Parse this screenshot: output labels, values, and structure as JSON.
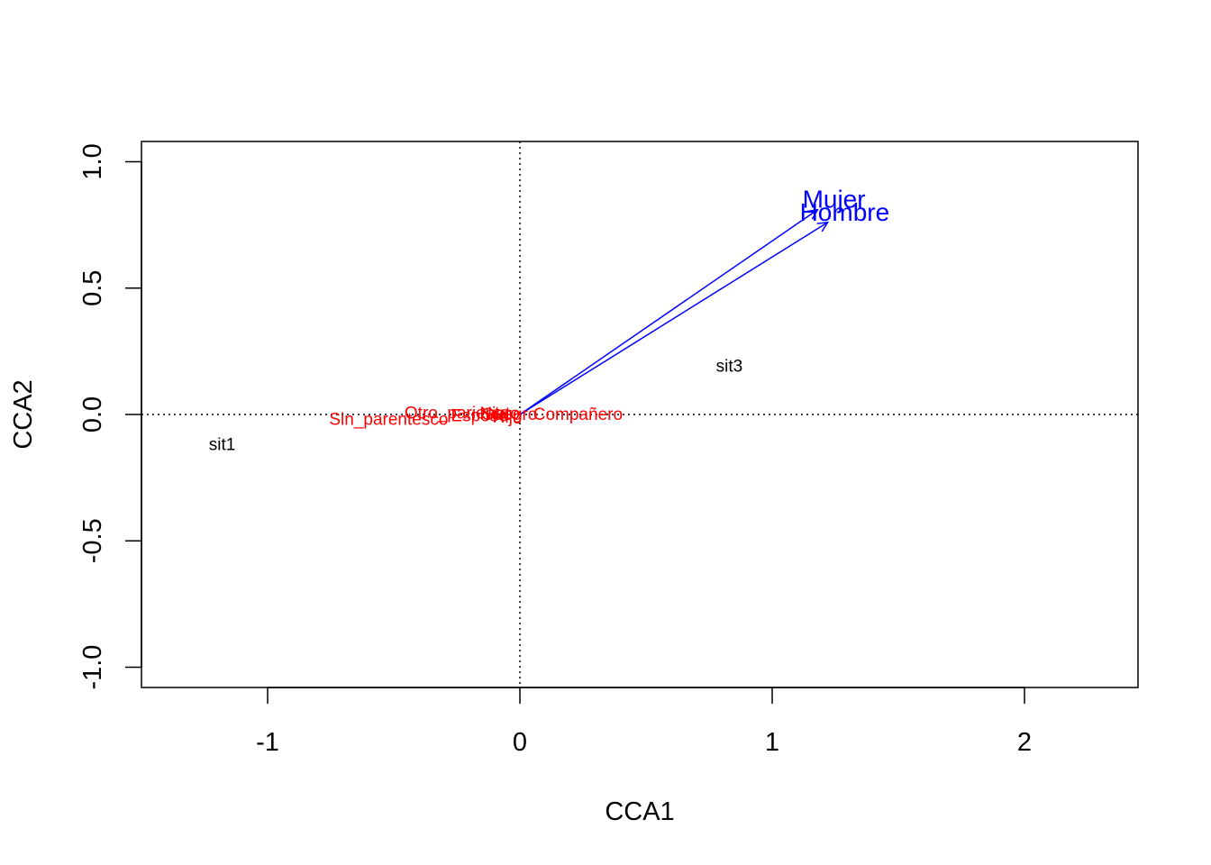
{
  "chart_data": {
    "type": "scatter",
    "title": "",
    "xlabel": "CCA1",
    "ylabel": "CCA2",
    "xlim": [
      -1.5,
      2.45
    ],
    "ylim": [
      -1.08,
      1.08
    ],
    "x_ticks": [
      -1,
      0,
      1,
      2
    ],
    "x_tick_labels": [
      "-1",
      "0",
      "1",
      "2"
    ],
    "y_ticks": [
      -1.0,
      -0.5,
      0.0,
      0.5,
      1.0
    ],
    "y_tick_labels": [
      "-1.0",
      "-0.5",
      "0.0",
      "0.5",
      "1.0"
    ],
    "reference_lines": {
      "x": 0,
      "y": 0,
      "style": "dotted"
    },
    "sites": [
      {
        "label": "sit1",
        "x": -1.18,
        "y": -0.12
      },
      {
        "label": "sit3",
        "x": 0.83,
        "y": 0.19
      }
    ],
    "species": [
      {
        "label": "Sin_parentesco",
        "x": -0.52,
        "y": -0.02
      },
      {
        "label": "Otro_pariente",
        "x": -0.25,
        "y": 0.005
      },
      {
        "label": "Esposo",
        "x": -0.16,
        "y": -0.005
      },
      {
        "label": "Hijo",
        "x": -0.05,
        "y": -0.01
      },
      {
        "label": "Nieto",
        "x": -0.08,
        "y": 0.003
      },
      {
        "label": "Suegro",
        "x": -0.04,
        "y": 0.0
      },
      {
        "label": "Compañero",
        "x": 0.23,
        "y": 0.0
      }
    ],
    "biplot_arrows": [
      {
        "label": "Mujer",
        "x": 1.18,
        "y": 0.81
      },
      {
        "label": "Hombre",
        "x": 1.22,
        "y": 0.76
      }
    ],
    "colors": {
      "sites": "#000000",
      "species": "#ff0000",
      "arrows": "#0000ff"
    }
  }
}
